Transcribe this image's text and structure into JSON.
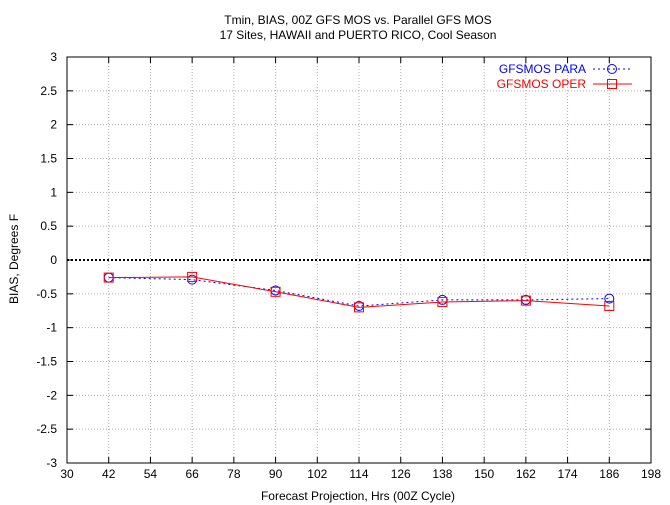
{
  "chart_data": {
    "type": "line",
    "title": "Tmin, BIAS, 00Z GFS MOS vs. Parallel GFS MOS",
    "subtitle": "17 Sites, HAWAII and PUERTO RICO, Cool Season",
    "xlabel": "Forecast Projection, Hrs (00Z Cycle)",
    "ylabel": "BIAS, Degrees F",
    "xlim": [
      30,
      198
    ],
    "ylim": [
      -3,
      3
    ],
    "xticks": [
      30,
      42,
      54,
      66,
      78,
      90,
      102,
      114,
      126,
      138,
      150,
      162,
      174,
      186,
      198
    ],
    "yticks": [
      -3,
      -2.5,
      -2,
      -1.5,
      -1,
      -0.5,
      0,
      0.5,
      1,
      1.5,
      2,
      2.5,
      3
    ],
    "grid": true,
    "legend_position": "top-right",
    "zero_line": 0,
    "x": [
      42,
      66,
      90,
      114,
      138,
      162,
      186
    ],
    "series": [
      {
        "name": "GFSMOS PARA",
        "color": "#0000ff",
        "marker": "circle",
        "line_style": "dotted",
        "values": [
          -0.26,
          -0.29,
          -0.45,
          -0.68,
          -0.59,
          -0.59,
          -0.57
        ]
      },
      {
        "name": "GFSMOS OPER",
        "color": "#ff0000",
        "marker": "square",
        "line_style": "solid",
        "values": [
          -0.26,
          -0.25,
          -0.47,
          -0.7,
          -0.62,
          -0.6,
          -0.68
        ]
      }
    ]
  }
}
